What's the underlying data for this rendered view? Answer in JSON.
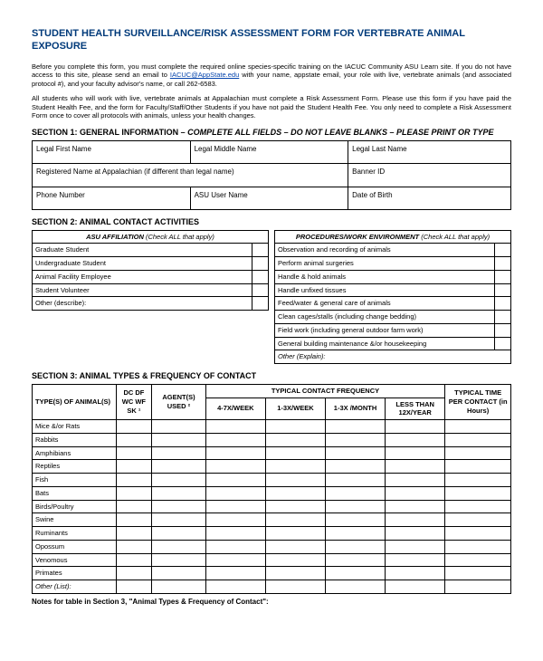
{
  "title": "STUDENT HEALTH SURVEILLANCE/RISK ASSESSMENT FORM FOR VERTEBRATE ANIMAL EXPOSURE",
  "intro": {
    "p1a": "Before you complete this form, you must complete the required online species-specific training on the IACUC Community ASU Learn site.  If you do not have access to this site, please send an email to ",
    "link": "IACUC@AppState.edu",
    "p1b": " with your name, appstate email, your role with live, vertebrate animals (and associated protocol #), and your faculty advisor's name, or call 262-6583.",
    "p2": "All students who will work with live, vertebrate animals at Appalachian must complete a Risk Assessment Form.   Please use this form if you have paid the Student Health Fee, and the form for Faculty/Staff/Other Students if you have not paid the Student Health Fee. You only need to complete a Risk Assessment Form once to cover all protocols with animals, unless your health changes."
  },
  "section1": {
    "head_prefix": "SECTION 1: GENERAL INFORMATION",
    "head_suffix": " – COMPLETE ALL FIELDS – DO NOT LEAVE BLANKS – PLEASE PRINT OR TYPE",
    "first": "Legal First Name",
    "middle": "Legal Middle Name",
    "last": "Legal Last Name",
    "regname": "Registered Name at Appalachian (if different than legal name)",
    "banner": "Banner ID",
    "phone": "Phone Number",
    "asu": "ASU User Name",
    "dob": "Date of Birth"
  },
  "section2": {
    "head": "SECTION 2:  ANIMAL CONTACT ACTIVITIES",
    "left_head": "ASU AFFILIATION",
    "left_head_note": "(Check ALL that apply)",
    "right_head": "PROCEDURES/WORK ENVIRONMENT",
    "right_head_note": "(Check ALL that apply)",
    "left": [
      "Graduate Student",
      "Undergraduate Student",
      "Animal Facility Employee",
      "Student Volunteer",
      "Other (describe):"
    ],
    "right": [
      "Observation and recording of animals",
      "Perform animal surgeries",
      "Handle & hold animals",
      "Handle unfixed tissues",
      "Feed/water & general care of animals",
      "Clean cages/stalls (including change bedding)",
      "Field work (including general outdoor farm work)",
      "General building maintenance &/or housekeeping",
      "Other (Explain):"
    ]
  },
  "section3": {
    "head": "SECTION 3:  ANIMAL TYPES & FREQUENCY OF CONTACT",
    "col_types": "TYPE(S) OF ANIMAL(S)",
    "col_codes": "DC  DF  WC  WF  SK ¹",
    "col_agents": "AGENT(S) USED ²",
    "typical_head": "TYPICAL CONTACT FREQUENCY",
    "freq": [
      "4-7X/WEEK",
      "1-3X/WEEK",
      "1-3X /MONTH",
      "LESS THAN 12X/YEAR"
    ],
    "col_time": "TYPICAL TIME PER CONTACT (in Hours)",
    "rows": [
      "Mice &/or Rats",
      "Rabbits",
      "Amphibians",
      "Reptiles",
      "Fish",
      "Bats",
      "Birds/Poultry",
      "Swine",
      "Ruminants",
      "Opossum",
      "Venomous",
      "Primates",
      "Other (List):"
    ],
    "notes": "Notes for table in Section 3, \"Animal Types & Frequency of Contact\":"
  }
}
